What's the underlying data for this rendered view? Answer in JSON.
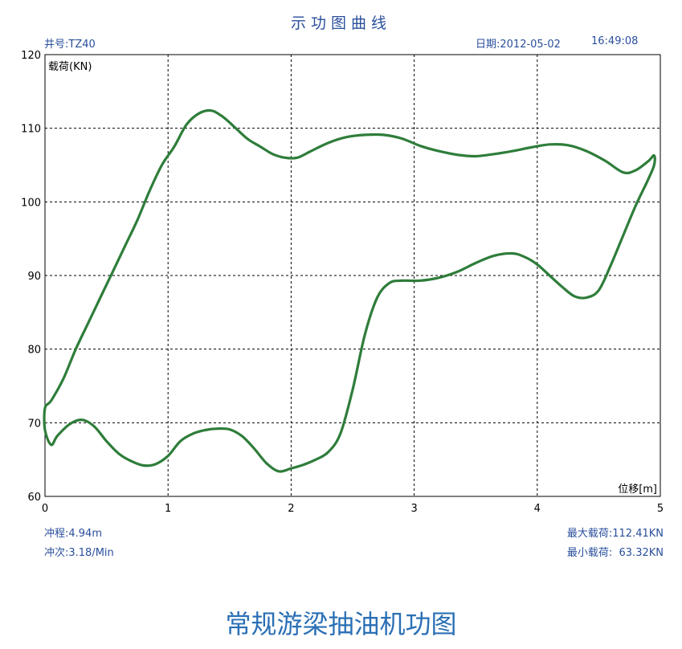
{
  "header": {
    "title": "示功图曲线",
    "well": "井号:TZ40",
    "date": "日期:2012-05-02",
    "time": "16:49:08"
  },
  "footer": {
    "stroke": "冲程:4.94m",
    "spm": "冲次:3.18/Min",
    "max_load": "最大载荷:112.41KN",
    "min_load": "最小载荷:  63.32KN"
  },
  "caption": "常规游梁抽油机功图",
  "colors": {
    "curve": "#2e7d3a",
    "info_text": "#2a4f9c",
    "caption": "#2a6fb5"
  },
  "chart_data": {
    "type": "line",
    "title": "示功图曲线",
    "xlabel": "位移[m]",
    "ylabel": "载荷(KN)",
    "xlim": [
      0,
      5
    ],
    "ylim": [
      60,
      120
    ],
    "xticks": [
      0,
      1,
      2,
      3,
      4,
      5
    ],
    "yticks": [
      60,
      70,
      80,
      90,
      100,
      110,
      120
    ],
    "grid": true,
    "series": [
      {
        "x": [
          0.0,
          0.05,
          0.15,
          0.25,
          0.35,
          0.45,
          0.55,
          0.65,
          0.75,
          0.85,
          0.95,
          1.05,
          1.15,
          1.25,
          1.35,
          1.45,
          1.55,
          1.65,
          1.75,
          1.85,
          1.95,
          2.05,
          2.15,
          2.3,
          2.45,
          2.6,
          2.75,
          2.9,
          3.05,
          3.2,
          3.35,
          3.5,
          3.65,
          3.8,
          3.95,
          4.1,
          4.25,
          4.4,
          4.55,
          4.7,
          4.8,
          4.9,
          4.95,
          4.95,
          4.9,
          4.8,
          4.7,
          4.6,
          4.5,
          4.4,
          4.3,
          4.2,
          4.1,
          4.0,
          3.9,
          3.8,
          3.65,
          3.5,
          3.35,
          3.2,
          3.05,
          2.9,
          2.8,
          2.7,
          2.6,
          2.5,
          2.4,
          2.3,
          2.2,
          2.1,
          2.0,
          1.9,
          1.8,
          1.7,
          1.6,
          1.5,
          1.4,
          1.3,
          1.2,
          1.1,
          1.0,
          0.9,
          0.8,
          0.7,
          0.6,
          0.5,
          0.4,
          0.3,
          0.2,
          0.1,
          0.05,
          0.0
        ],
        "y": [
          72.0,
          73.0,
          76.0,
          80.0,
          83.5,
          87.0,
          90.5,
          94.0,
          97.5,
          101.5,
          105.0,
          107.5,
          110.5,
          112.0,
          112.4,
          111.5,
          110.0,
          108.5,
          107.5,
          106.5,
          106.0,
          106.0,
          106.8,
          108.0,
          108.8,
          109.1,
          109.1,
          108.6,
          107.6,
          106.9,
          106.4,
          106.2,
          106.5,
          106.9,
          107.4,
          107.8,
          107.7,
          106.9,
          105.6,
          104.0,
          104.3,
          105.5,
          106.3,
          105.0,
          103.0,
          99.5,
          95.5,
          91.5,
          88.0,
          87.0,
          87.2,
          88.5,
          90.0,
          91.5,
          92.5,
          93.0,
          92.7,
          91.7,
          90.5,
          89.7,
          89.3,
          89.3,
          89.0,
          87.0,
          82.0,
          74.5,
          68.5,
          66.0,
          65.0,
          64.3,
          63.8,
          63.4,
          64.5,
          66.5,
          68.2,
          69.1,
          69.2,
          69.0,
          68.5,
          67.5,
          65.5,
          64.4,
          64.2,
          64.8,
          65.8,
          67.5,
          69.5,
          70.4,
          69.8,
          68.2,
          67.0,
          69.0
        ]
      }
    ]
  }
}
